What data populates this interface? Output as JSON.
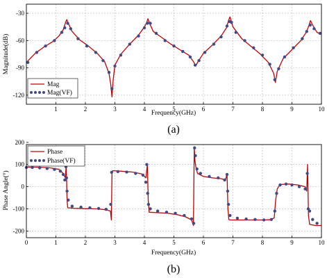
{
  "chart_data": [
    {
      "type": "line",
      "caption": "(a)",
      "xlabel": "Frequency(GHz)",
      "ylabel": "Magnitude(dB)",
      "xlim": [
        0,
        10
      ],
      "ylim": [
        -130,
        -20
      ],
      "xticks": [
        1,
        2,
        3,
        4,
        5,
        6,
        7,
        8,
        9,
        10
      ],
      "yticks": [
        -30,
        -60,
        -90,
        -120
      ],
      "grid": true,
      "legend_position": "bottom-left",
      "series": [
        {
          "name": "Mag",
          "style": "line",
          "color": "#c00000",
          "x": [
            0.0,
            0.3,
            0.6,
            0.9,
            1.1,
            1.25,
            1.33,
            1.37,
            1.42,
            1.55,
            1.8,
            2.1,
            2.4,
            2.65,
            2.8,
            2.86,
            2.9,
            2.94,
            3.0,
            3.2,
            3.5,
            3.8,
            4.0,
            4.08,
            4.12,
            4.16,
            4.3,
            4.6,
            4.9,
            5.2,
            5.5,
            5.68,
            5.74,
            5.8,
            6.0,
            6.3,
            6.6,
            6.78,
            6.85,
            6.9,
            7.0,
            7.3,
            7.6,
            7.9,
            8.2,
            8.38,
            8.44,
            8.5,
            8.7,
            9.0,
            9.3,
            9.5,
            9.58,
            9.63,
            9.7,
            9.85,
            10.0
          ],
          "y": [
            -84,
            -74,
            -67,
            -61,
            -55,
            -48,
            -40,
            -37,
            -41,
            -50,
            -59,
            -66,
            -74,
            -83,
            -96,
            -108,
            -122,
            -104,
            -87,
            -75,
            -64,
            -54,
            -45,
            -40,
            -36,
            -40,
            -50,
            -57,
            -64,
            -70,
            -76,
            -84,
            -88,
            -84,
            -74,
            -65,
            -55,
            -46,
            -38,
            -34,
            -45,
            -58,
            -66,
            -74,
            -84,
            -96,
            -106,
            -94,
            -80,
            -70,
            -60,
            -50,
            -43,
            -38,
            -43,
            -51,
            -53
          ]
        },
        {
          "name": "Mag(VF)",
          "style": "dots",
          "color": "#3f4a86",
          "x": [
            0.05,
            0.35,
            0.65,
            0.95,
            1.2,
            1.3,
            1.4,
            1.5,
            1.75,
            2.05,
            2.35,
            2.6,
            2.8,
            2.9,
            3.0,
            3.2,
            3.5,
            3.8,
            4.0,
            4.1,
            4.2,
            4.4,
            4.7,
            5.0,
            5.3,
            5.55,
            5.72,
            5.85,
            6.05,
            6.35,
            6.6,
            6.8,
            6.88,
            6.95,
            7.1,
            7.4,
            7.7,
            8.0,
            8.25,
            8.42,
            8.55,
            8.75,
            9.05,
            9.35,
            9.5,
            9.62,
            9.75,
            9.95
          ],
          "y": [
            -84,
            -73,
            -66,
            -60,
            -51,
            -46,
            -41,
            -47,
            -58,
            -66,
            -73,
            -82,
            -95,
            -113,
            -88,
            -76,
            -64,
            -55,
            -46,
            -41,
            -41,
            -52,
            -60,
            -66,
            -72,
            -78,
            -87,
            -82,
            -73,
            -64,
            -56,
            -44,
            -39,
            -40,
            -51,
            -60,
            -68,
            -76,
            -86,
            -103,
            -91,
            -78,
            -68,
            -58,
            -50,
            -43,
            -47,
            -52
          ]
        }
      ]
    },
    {
      "type": "line",
      "caption": "(b)",
      "xlabel": "Frequency(GHz)",
      "ylabel": "Phase Angle(°)",
      "xlim": [
        0,
        10
      ],
      "ylim": [
        -230,
        190
      ],
      "xticks": [
        0,
        1,
        2,
        3,
        4,
        5,
        6,
        7,
        8,
        9,
        10
      ],
      "yticks": [
        200,
        100,
        0,
        -100,
        -200
      ],
      "grid": true,
      "legend_position": "top-left",
      "series": [
        {
          "name": "Phase",
          "style": "line",
          "color": "#c00000",
          "x": [
            0.0,
            0.4,
            0.8,
            1.1,
            1.25,
            1.32,
            1.35,
            1.38,
            1.4,
            1.6,
            2.0,
            2.4,
            2.7,
            2.85,
            2.88,
            2.9,
            2.93,
            3.2,
            3.6,
            3.9,
            4.05,
            4.1,
            4.13,
            4.16,
            4.4,
            4.8,
            5.1,
            5.4,
            5.6,
            5.66,
            5.69,
            5.71,
            5.74,
            5.8,
            6.0,
            6.3,
            6.6,
            6.75,
            6.8,
            6.83,
            6.86,
            6.9,
            7.2,
            7.6,
            8.0,
            8.3,
            8.4,
            8.45,
            8.5,
            8.6,
            8.9,
            9.2,
            9.45,
            9.5,
            9.53,
            9.56,
            9.6,
            9.8,
            10.0
          ],
          "y": [
            88,
            88,
            85,
            78,
            60,
            40,
            100,
            -60,
            -95,
            -97,
            -99,
            -100,
            -104,
            -110,
            -150,
            60,
            72,
            70,
            66,
            58,
            40,
            100,
            -60,
            -115,
            -117,
            -120,
            -126,
            -136,
            -150,
            -175,
            180,
            120,
            90,
            60,
            46,
            40,
            36,
            30,
            60,
            -100,
            -148,
            -150,
            -150,
            -150,
            -150,
            -149,
            -140,
            -60,
            -10,
            10,
            12,
            8,
            0,
            -20,
            100,
            -130,
            -170,
            -175,
            -175
          ]
        },
        {
          "name": "Phase(VF)",
          "style": "dots",
          "color": "#3f4a86",
          "x": [
            0.0,
            0.2,
            0.45,
            0.7,
            0.95,
            1.15,
            1.25,
            1.3,
            1.34,
            1.36,
            1.38,
            1.42,
            1.55,
            1.85,
            2.15,
            2.45,
            2.7,
            2.86,
            2.89,
            3.1,
            3.4,
            3.7,
            3.95,
            4.05,
            4.08,
            4.11,
            4.14,
            4.2,
            4.45,
            4.75,
            5.05,
            5.35,
            5.6,
            5.67,
            5.7,
            5.73,
            5.78,
            5.9,
            6.2,
            6.5,
            6.72,
            6.8,
            6.82,
            6.85,
            6.9,
            7.15,
            7.45,
            7.75,
            8.05,
            8.3,
            8.42,
            8.48,
            8.6,
            8.8,
            9.0,
            9.25,
            9.45,
            9.52,
            9.55,
            9.6,
            9.7,
            9.85
          ],
          "y": [
            87,
            87,
            85,
            82,
            78,
            70,
            55,
            30,
            90,
            40,
            -20,
            -60,
            -88,
            -92,
            -95,
            -98,
            -102,
            -80,
            65,
            68,
            66,
            60,
            52,
            20,
            100,
            -30,
            -80,
            -100,
            -110,
            -115,
            -120,
            -130,
            -145,
            -165,
            175,
            140,
            80,
            60,
            46,
            40,
            30,
            55,
            -20,
            -80,
            -130,
            -142,
            -146,
            -148,
            -150,
            -148,
            -110,
            -30,
            8,
            12,
            8,
            0,
            -10,
            60,
            -100,
            -110,
            -148,
            -165
          ]
        }
      ]
    }
  ]
}
